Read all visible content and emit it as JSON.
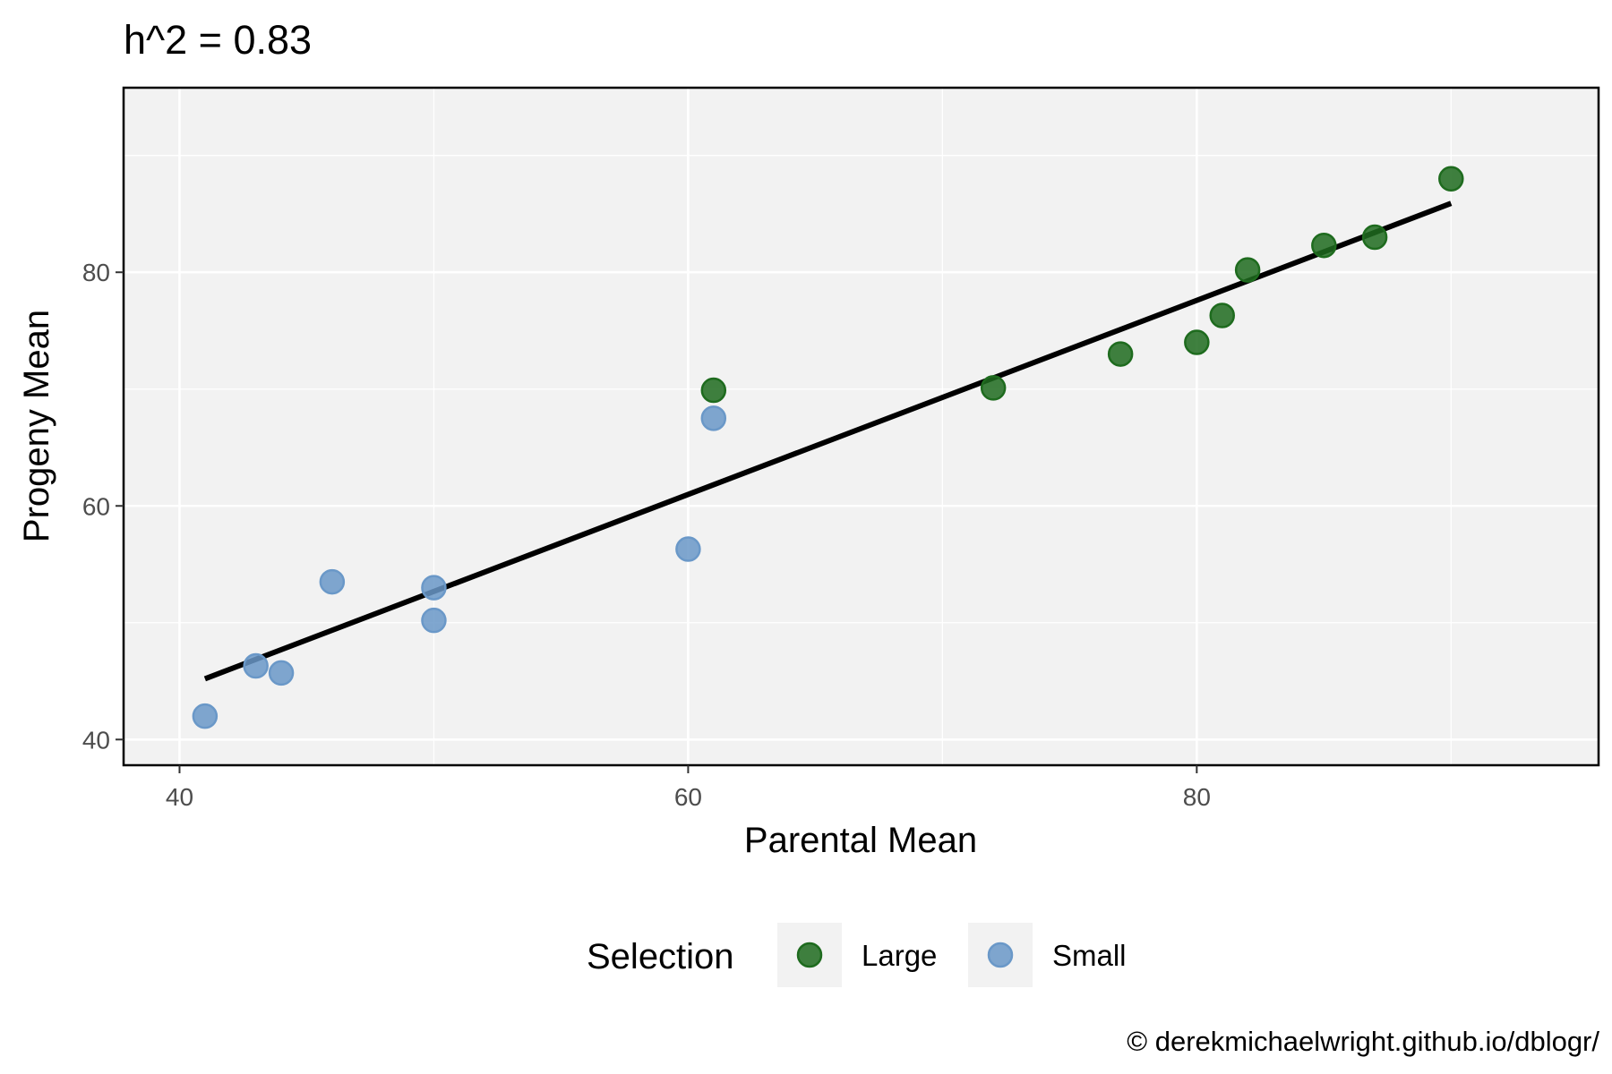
{
  "chart_data": {
    "type": "scatter",
    "title": "h^2 = 0.83",
    "xlabel": "Parental Mean",
    "ylabel": "Progeny Mean",
    "xlim": [
      37.8,
      95.8
    ],
    "ylim": [
      37.8,
      95.8
    ],
    "x_ticks": [
      40,
      60,
      80
    ],
    "y_ticks": [
      40,
      60,
      80
    ],
    "grid": true,
    "legend_title": "Selection",
    "legend_position": "bottom",
    "series": [
      {
        "name": "Large",
        "color": "#1e6b1e",
        "points": [
          {
            "x": 61,
            "y": 69.9
          },
          {
            "x": 72,
            "y": 70.1
          },
          {
            "x": 77,
            "y": 73.0
          },
          {
            "x": 80,
            "y": 74.0
          },
          {
            "x": 81,
            "y": 76.3
          },
          {
            "x": 82,
            "y": 80.2
          },
          {
            "x": 85,
            "y": 82.3
          },
          {
            "x": 87,
            "y": 83.0
          },
          {
            "x": 90,
            "y": 88.0
          }
        ]
      },
      {
        "name": "Small",
        "color": "#6a98c8",
        "points": [
          {
            "x": 41,
            "y": 42.0
          },
          {
            "x": 43,
            "y": 46.3
          },
          {
            "x": 44,
            "y": 45.7
          },
          {
            "x": 46,
            "y": 53.5
          },
          {
            "x": 50,
            "y": 53.0
          },
          {
            "x": 50,
            "y": 50.2
          },
          {
            "x": 60,
            "y": 56.3
          },
          {
            "x": 61,
            "y": 67.5
          }
        ]
      }
    ],
    "regression_line": {
      "color": "#000000",
      "x": [
        41,
        90
      ],
      "y": [
        45.2,
        85.9
      ]
    },
    "caption": "© derekmichaelwright.github.io/dblogr/"
  }
}
